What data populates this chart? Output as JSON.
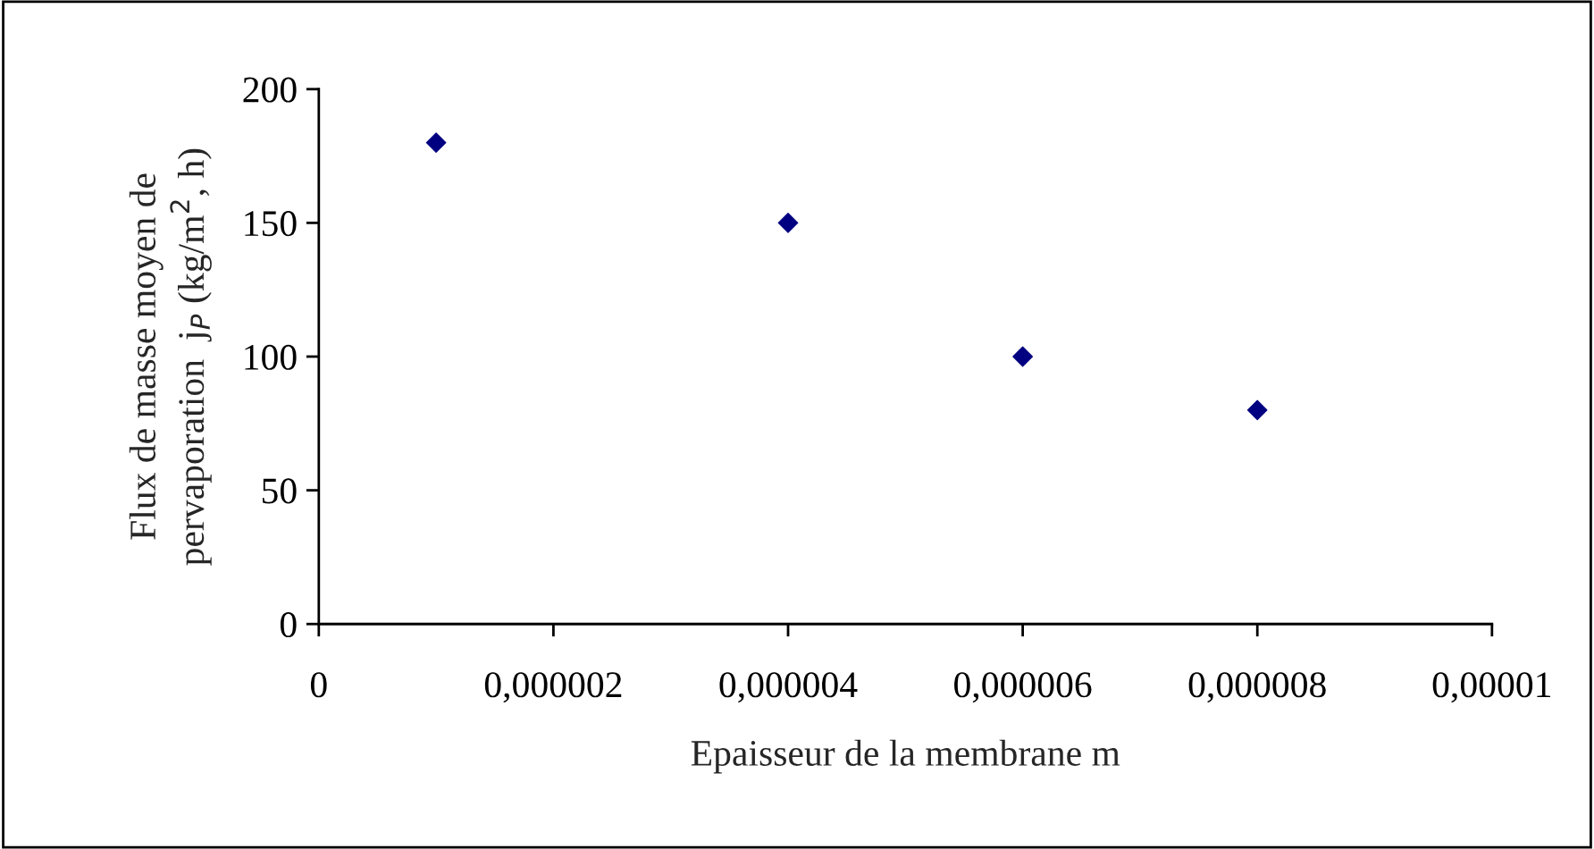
{
  "chart_data": {
    "type": "scatter",
    "xlabel": "Epaisseur de la membrane m",
    "ylabel": "Flux de masse moyen de\npervaporation  j$_{P}$ (kg/m$^{2}$, h)",
    "x": [
      1e-06,
      4e-06,
      6e-06,
      8e-06
    ],
    "series": [
      {
        "color": "#000080",
        "values": [
          180,
          150,
          100,
          80
        ]
      }
    ],
    "marker": "diamond",
    "xlim": [
      0,
      1e-05
    ],
    "xticks": [
      0,
      {
        "value": 2e-06,
        "label": "0,000002"
      },
      {
        "value": 4e-06,
        "label": "0,000004"
      },
      {
        "value": 6e-06,
        "label": "0,000006"
      },
      {
        "value": 8e-06,
        "label": "0,000008"
      },
      {
        "value": 1e-05,
        "label": "0,00001"
      }
    ],
    "ylim": [
      0,
      200
    ],
    "yticks": [
      0,
      50,
      100,
      150,
      200
    ],
    "grid": false,
    "legend": false
  }
}
